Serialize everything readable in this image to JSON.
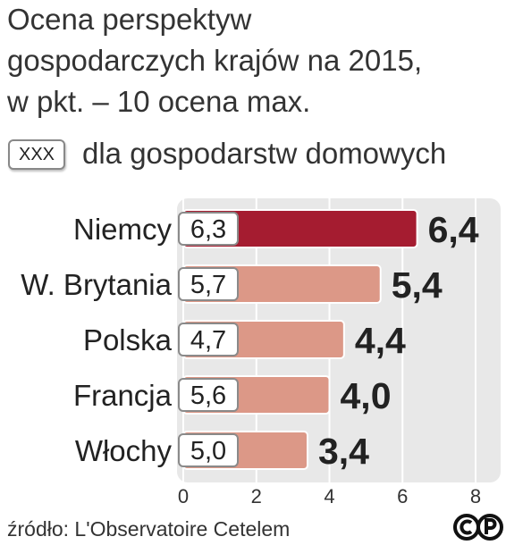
{
  "title_lines": [
    "Ocena perspektyw",
    "gospodarczych krajów na 2015,",
    "w pkt. – 10 ocena max."
  ],
  "legend": {
    "box_label": "XXX",
    "label": "dla gospodarstw domowych"
  },
  "source": "źródło: L'Observatoire Cetelem",
  "colors": {
    "highlight_bar": "#a51c30",
    "bar": "#dc9887",
    "panel": "#e8e8e8",
    "text": "#222222"
  },
  "chart_data": {
    "type": "bar",
    "orientation": "horizontal",
    "categories": [
      "Niemcy",
      "W. Brytania",
      "Polska",
      "Francja",
      "Włochy"
    ],
    "values": [
      6.4,
      5.4,
      4.4,
      4.0,
      3.4
    ],
    "value_labels": [
      "6,4",
      "5,4",
      "4,4",
      "4,0",
      "3,4"
    ],
    "household_values": [
      6.3,
      5.7,
      4.7,
      5.6,
      5.0
    ],
    "household_labels": [
      "6,3",
      "5,7",
      "4,7",
      "5,6",
      "5,0"
    ],
    "highlight_index": 0,
    "xlim": [
      0,
      8
    ],
    "xticks": [
      "0",
      "2",
      "4",
      "6",
      "8"
    ],
    "grid": true
  }
}
